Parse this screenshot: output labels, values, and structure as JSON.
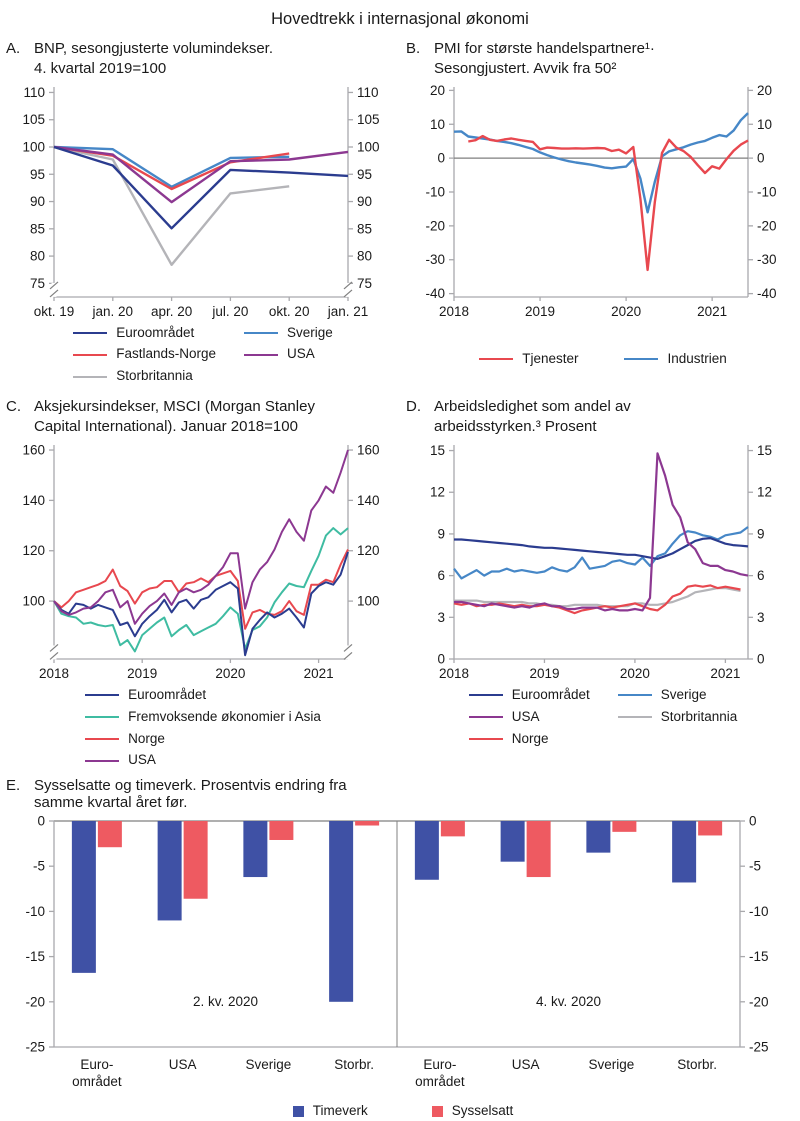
{
  "page": {
    "title": "Hovedtrekk i internasjonal økonomi"
  },
  "colors": {
    "navy": "#2B3C8F",
    "blue": "#4687C7",
    "red": "#E8484F",
    "purple": "#8C3891",
    "gray": "#B4B4B8",
    "teal": "#3FBCA2",
    "barNavy": "#3F51A5",
    "barRed": "#EE5A61",
    "axis": "#A9A9AD",
    "zero": "#7F7F7F",
    "break": "#808080",
    "text": "#1A1A1A"
  },
  "panels": [
    {
      "letter": "A.",
      "title": "BNP, sesongjusterte volumindekser.\n4. kvartal 2019=100"
    },
    {
      "letter": "B.",
      "title": "PMI for største handelspartnere¹·\nSesongjustert. Avvik fra 50²"
    },
    {
      "letter": "C.",
      "title": "Aksjekursindekser, MSCI (Morgan Stanley\nCapital International). Januar 2018=100"
    },
    {
      "letter": "D.",
      "title": "Arbeidsledighet som andel av\narbeidsstyrken.³ Prosent"
    },
    {
      "letter": "E.",
      "title": "Sysselsatte og timeverk. Prosentvis endring fra samme kvartal året før."
    }
  ],
  "chart_data": [
    {
      "type": "line",
      "title": "BNP, sesongjusterte volumindekser. 4. kvartal 2019=100",
      "n": 6,
      "ylim": [
        72.5,
        111
      ],
      "yticks": [
        75,
        80,
        85,
        90,
        95,
        100,
        105,
        110
      ],
      "xticks": [
        {
          "i": 0,
          "label": "okt. 19"
        },
        {
          "i": 1,
          "label": "jan. 20"
        },
        {
          "i": 2,
          "label": "apr. 20"
        },
        {
          "i": 3,
          "label": "jul. 20"
        },
        {
          "i": 4,
          "label": "okt. 20"
        },
        {
          "i": 5,
          "label": "jan. 21"
        }
      ],
      "axis_break": {
        "at": 73.8
      },
      "line_width": 2.4,
      "layout": {
        "l": 48,
        "r": 50,
        "t": 6,
        "b": 26
      },
      "draw_order": [
        2,
        3,
        1,
        4,
        0
      ],
      "legend": {
        "swatch": "line",
        "columns": [
          [
            0,
            1,
            2
          ],
          [
            3,
            4
          ]
        ]
      },
      "series": [
        {
          "name": "Euroområdet",
          "color": "navy",
          "values": [
            100,
            96.6,
            85.1,
            95.8,
            95.3,
            94.7
          ]
        },
        {
          "name": "Fastlands-Norge",
          "color": "red",
          "values": [
            100,
            98.4,
            92.3,
            97.2,
            98.8,
            null
          ]
        },
        {
          "name": "Storbritannia",
          "color": "gray",
          "values": [
            100,
            97.7,
            78.4,
            91.5,
            92.8,
            null
          ]
        },
        {
          "name": "Sverige",
          "color": "blue",
          "values": [
            100,
            99.6,
            92.7,
            98.0,
            98.2,
            null
          ]
        },
        {
          "name": "USA",
          "color": "purple",
          "values": [
            100,
            98.6,
            89.9,
            97.4,
            97.7,
            99.1
          ]
        }
      ]
    },
    {
      "type": "line",
      "title": "PMI for største handelspartnere. Sesongjustert. Avvik fra 50",
      "n": 42,
      "ylim": [
        -41,
        21
      ],
      "yticks": [
        -40,
        -30,
        -20,
        -10,
        0,
        10,
        20
      ],
      "xticks": [
        {
          "i": 0,
          "label": "2018"
        },
        {
          "i": 12,
          "label": "2019"
        },
        {
          "i": 24,
          "label": "2020"
        },
        {
          "i": 36,
          "label": "2021"
        }
      ],
      "zero_line": true,
      "line_width": 2.4,
      "layout": {
        "l": 48,
        "r": 50,
        "t": 6,
        "b": 26
      },
      "draw_order": [
        1,
        0
      ],
      "legend": {
        "swatch": "line",
        "columns": [
          [
            0
          ],
          [
            1
          ]
        ]
      },
      "series": [
        {
          "name": "Tjenester",
          "color": "red",
          "values": [
            null,
            null,
            4.9,
            5.3,
            6.5,
            5.4,
            5.1,
            5.5,
            5.8,
            5.4,
            5.1,
            4.8,
            2.6,
            3.1,
            3.0,
            2.8,
            2.8,
            2.9,
            2.8,
            2.9,
            3.0,
            2.9,
            2.1,
            2.5,
            1.4,
            3.3,
            -12.0,
            -33.0,
            -13.0,
            1.5,
            5.4,
            3.1,
            2.1,
            0.4,
            -2.1,
            -4.4,
            -2.4,
            -3.1,
            -0.3,
            2.2,
            4.0,
            5.2
          ]
        },
        {
          "name": "Industrien",
          "color": "blue",
          "values": [
            7.8,
            7.9,
            6.4,
            6.1,
            5.8,
            5.5,
            5.1,
            4.8,
            4.4,
            3.9,
            3.3,
            2.7,
            1.7,
            0.9,
            0.2,
            -0.4,
            -0.9,
            -1.3,
            -1.6,
            -1.9,
            -2.3,
            -2.8,
            -3.0,
            -2.7,
            -2.5,
            -0.3,
            -6.0,
            -16.0,
            -7.0,
            0.5,
            2.0,
            2.6,
            3.2,
            4.0,
            4.6,
            5.1,
            6.0,
            6.8,
            6.4,
            8.2,
            11.2,
            13.3
          ]
        }
      ]
    },
    {
      "type": "line",
      "title": "Aksjekursindekser, MSCI. Januar 2018=100",
      "n": 41,
      "ylim": [
        77,
        162
      ],
      "yticks": [
        100,
        120,
        140,
        160
      ],
      "xticks": [
        {
          "i": 0,
          "label": "2018"
        },
        {
          "i": 12,
          "label": "2019"
        },
        {
          "i": 24,
          "label": "2020"
        },
        {
          "i": 36,
          "label": "2021"
        }
      ],
      "axis_break": {
        "at": 79.6
      },
      "line_width": 2.0,
      "layout": {
        "l": 48,
        "r": 50,
        "t": 6,
        "b": 26
      },
      "draw_order": [
        1,
        2,
        0,
        3
      ],
      "legend": {
        "swatch": "line",
        "columns": [
          [
            0,
            1,
            2,
            3
          ]
        ]
      },
      "series": [
        {
          "name": "Euroområdet",
          "color": "navy",
          "values": [
            100,
            96.5,
            95,
            99,
            98.5,
            97,
            98.5,
            97.5,
            96.5,
            90.5,
            91.5,
            86,
            91,
            94,
            96.5,
            100.5,
            95.5,
            99.5,
            100.5,
            97,
            100.5,
            101.5,
            104.5,
            106,
            107.5,
            105,
            78.5,
            89,
            92.5,
            95.5,
            93.5,
            95,
            97,
            93.5,
            89.5,
            103,
            106,
            107.5,
            106.5,
            110.5,
            119.5
          ]
        },
        {
          "name": "Fremvoksende økonomier i Asia",
          "color": "teal",
          "values": [
            100,
            95,
            94,
            93.5,
            91,
            91.5,
            90.5,
            90,
            90.5,
            82.5,
            84.5,
            80,
            86.5,
            89,
            91.5,
            93.5,
            86,
            88.5,
            90.5,
            86.5,
            88,
            89.5,
            91,
            94,
            97.5,
            95,
            81,
            88.5,
            90,
            93.5,
            99.5,
            103.5,
            107,
            106,
            105.5,
            112,
            118,
            126,
            129,
            126.5,
            129
          ]
        },
        {
          "name": "Norge",
          "color": "red",
          "values": [
            100,
            97.5,
            100,
            103.5,
            104.5,
            105.5,
            106.5,
            108,
            112.5,
            106,
            104,
            99,
            103.5,
            105,
            105.5,
            108,
            108,
            103.5,
            107,
            107.5,
            109,
            107.5,
            110,
            111,
            112,
            108,
            89,
            95.5,
            96.5,
            95,
            94.5,
            96,
            100,
            96,
            94.5,
            106.5,
            106.5,
            108.5,
            107.5,
            114.5,
            120.5
          ]
        },
        {
          "name": "USA",
          "color": "purple",
          "values": [
            100,
            96,
            94.5,
            95.5,
            97,
            97.5,
            100,
            103.5,
            104.5,
            97.5,
            100,
            91,
            95,
            98,
            100,
            103,
            98.5,
            103.5,
            105,
            103.5,
            104.5,
            106.5,
            110,
            113.5,
            119,
            119,
            97,
            107.5,
            112.5,
            115.5,
            120.5,
            127.5,
            132.5,
            127.5,
            124,
            136,
            140,
            145.5,
            143,
            151,
            160
          ]
        }
      ]
    },
    {
      "type": "line",
      "title": "Arbeidsledighet som andel av arbeidsstyrken. Prosent",
      "n": 40,
      "ylim": [
        0,
        15.4
      ],
      "yticks": [
        0,
        3,
        6,
        9,
        12,
        15
      ],
      "xticks": [
        {
          "i": 0,
          "label": "2018"
        },
        {
          "i": 12,
          "label": "2019"
        },
        {
          "i": 24,
          "label": "2020"
        },
        {
          "i": 36,
          "label": "2021"
        }
      ],
      "line_width": 2.2,
      "layout": {
        "l": 48,
        "r": 50,
        "t": 6,
        "b": 26
      },
      "draw_order": [
        4,
        2,
        3,
        0,
        1
      ],
      "legend": {
        "swatch": "line",
        "columns": [
          [
            0,
            1,
            2
          ],
          [
            3,
            4
          ]
        ]
      },
      "series": [
        {
          "name": "Euroområdet",
          "color": "navy",
          "values": [
            8.6,
            8.6,
            8.55,
            8.5,
            8.45,
            8.4,
            8.35,
            8.3,
            8.25,
            8.2,
            8.1,
            8.05,
            8.0,
            8.0,
            7.95,
            7.9,
            7.85,
            7.8,
            7.75,
            7.7,
            7.65,
            7.6,
            7.55,
            7.5,
            7.5,
            7.4,
            7.3,
            7.2,
            7.4,
            7.6,
            7.9,
            8.2,
            8.5,
            8.65,
            8.7,
            8.5,
            8.3,
            8.2,
            8.15,
            8.1
          ]
        },
        {
          "name": "USA",
          "color": "purple",
          "values": [
            4.1,
            4.1,
            4.0,
            3.9,
            3.8,
            4.0,
            3.9,
            3.8,
            3.7,
            3.8,
            3.7,
            3.9,
            4.0,
            3.8,
            3.8,
            3.6,
            3.6,
            3.7,
            3.7,
            3.7,
            3.5,
            3.6,
            3.5,
            3.5,
            3.6,
            3.5,
            4.4,
            14.8,
            13.2,
            11.1,
            10.2,
            8.4,
            7.9,
            6.9,
            6.7,
            6.7,
            6.4,
            6.3,
            6.1,
            6.0
          ]
        },
        {
          "name": "Norge",
          "color": "red",
          "values": [
            4.0,
            3.9,
            4.0,
            3.8,
            3.9,
            3.9,
            4.0,
            3.9,
            3.8,
            3.9,
            3.8,
            3.8,
            3.9,
            3.8,
            3.7,
            3.5,
            3.3,
            3.5,
            3.6,
            3.7,
            3.8,
            3.7,
            3.8,
            3.9,
            4.0,
            3.8,
            3.6,
            3.5,
            3.9,
            4.5,
            4.7,
            5.2,
            5.3,
            5.2,
            5.3,
            5.1,
            5.2,
            5.1,
            5.0,
            null
          ]
        },
        {
          "name": "Sverige",
          "color": "blue",
          "values": [
            6.5,
            5.8,
            6.1,
            6.4,
            6.0,
            6.3,
            6.3,
            6.5,
            6.3,
            6.4,
            6.3,
            6.2,
            6.3,
            6.6,
            6.4,
            6.3,
            6.6,
            7.3,
            6.5,
            6.6,
            6.7,
            7.0,
            7.1,
            6.9,
            6.8,
            7.3,
            6.7,
            7.4,
            7.6,
            8.3,
            8.9,
            9.2,
            9.1,
            8.9,
            8.8,
            8.6,
            8.9,
            9.0,
            9.1,
            9.5
          ]
        },
        {
          "name": "Storbritannia",
          "color": "gray",
          "values": [
            4.2,
            4.2,
            4.2,
            4.2,
            4.1,
            4.1,
            4.1,
            4.1,
            4.1,
            4.1,
            4.0,
            4.0,
            3.9,
            3.9,
            3.8,
            3.8,
            3.9,
            3.9,
            3.9,
            3.9,
            3.8,
            3.8,
            3.8,
            3.8,
            4.0,
            4.0,
            3.9,
            3.9,
            4.0,
            4.1,
            4.3,
            4.5,
            4.8,
            4.9,
            5.0,
            5.1,
            5.1,
            5.0,
            4.9,
            null
          ]
        }
      ]
    },
    {
      "type": "bar",
      "title": "Sysselsatte og timeverk. Prosentvis endring fra samme kvartal året før.",
      "ylim": [
        -25,
        0
      ],
      "yticks": [
        0,
        -5,
        -10,
        -15,
        -20,
        -25
      ],
      "categories": [
        "Euro-\nområdet",
        "USA",
        "Sverige",
        "Storbr.",
        "Euro-\nområdet",
        "USA",
        "Sverige",
        "Storbr."
      ],
      "group_labels": [
        {
          "label": "2. kv. 2020",
          "at": -20
        },
        {
          "label": "4. kv. 2020",
          "at": -20
        }
      ],
      "layout": {
        "l": 48,
        "r": 50,
        "t": 8,
        "b": 56
      },
      "legend": {
        "swatch": "square",
        "columns": [
          [
            0
          ],
          [
            1
          ]
        ]
      },
      "series": [
        {
          "name": "Timeverk",
          "color": "barNavy",
          "values": [
            -16.8,
            -11.0,
            -6.2,
            -20.0,
            -6.5,
            -4.5,
            -3.5,
            -6.8
          ]
        },
        {
          "name": "Sysselsatt",
          "color": "barRed",
          "values": [
            -2.9,
            -8.6,
            -2.1,
            -0.5,
            -1.7,
            -6.2,
            -1.2,
            -1.6
          ]
        }
      ]
    }
  ]
}
